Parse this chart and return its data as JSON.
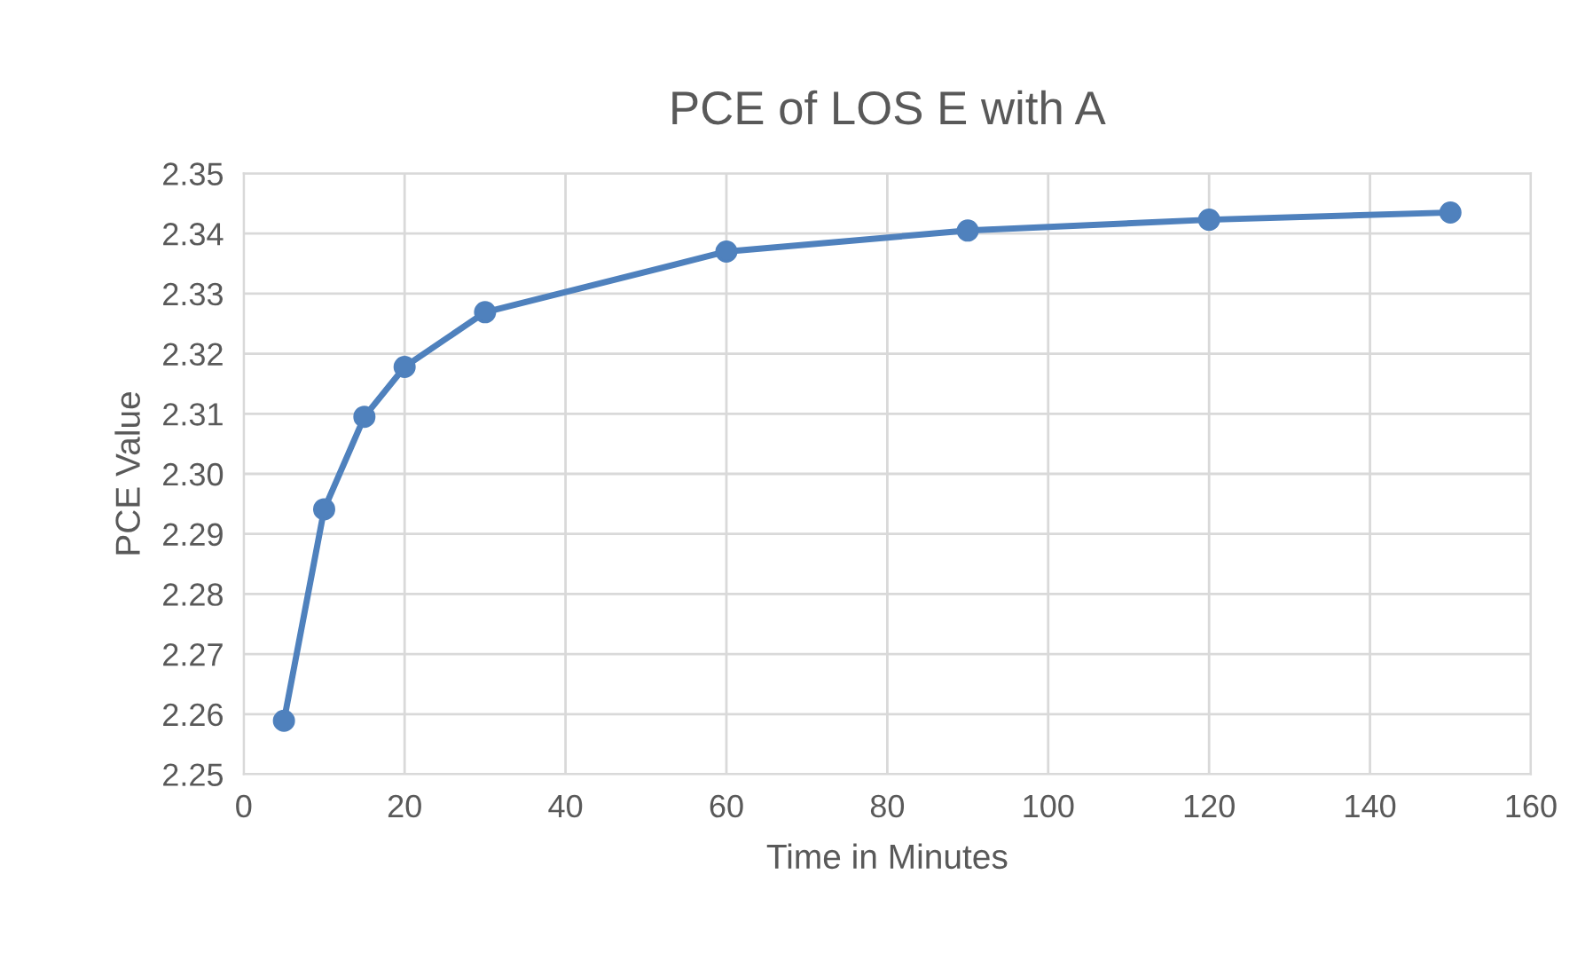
{
  "chart_data": {
    "type": "line",
    "title": "PCE of LOS E with A",
    "xlabel": "Time in Minutes",
    "ylabel": "PCE Value",
    "x": [
      5,
      10,
      15,
      20,
      30,
      60,
      90,
      120,
      150
    ],
    "series": [
      {
        "color": "#4f81bd",
        "values": [
          2.2589,
          2.2941,
          2.3095,
          2.3178,
          2.3269,
          2.337,
          2.3405,
          2.3423,
          2.3435
        ]
      }
    ],
    "xlim": [
      0,
      160
    ],
    "xticks": [
      0,
      20,
      40,
      60,
      80,
      100,
      120,
      140,
      160
    ],
    "ylim": [
      2.25,
      2.35
    ],
    "yticks": [
      2.25,
      2.26,
      2.27,
      2.28,
      2.29,
      {
        "value": 2.3,
        "label": "2.30"
      },
      2.31,
      2.32,
      2.33,
      2.34,
      2.35
    ],
    "grid": true,
    "marker": "circle",
    "line_style": "solid"
  }
}
